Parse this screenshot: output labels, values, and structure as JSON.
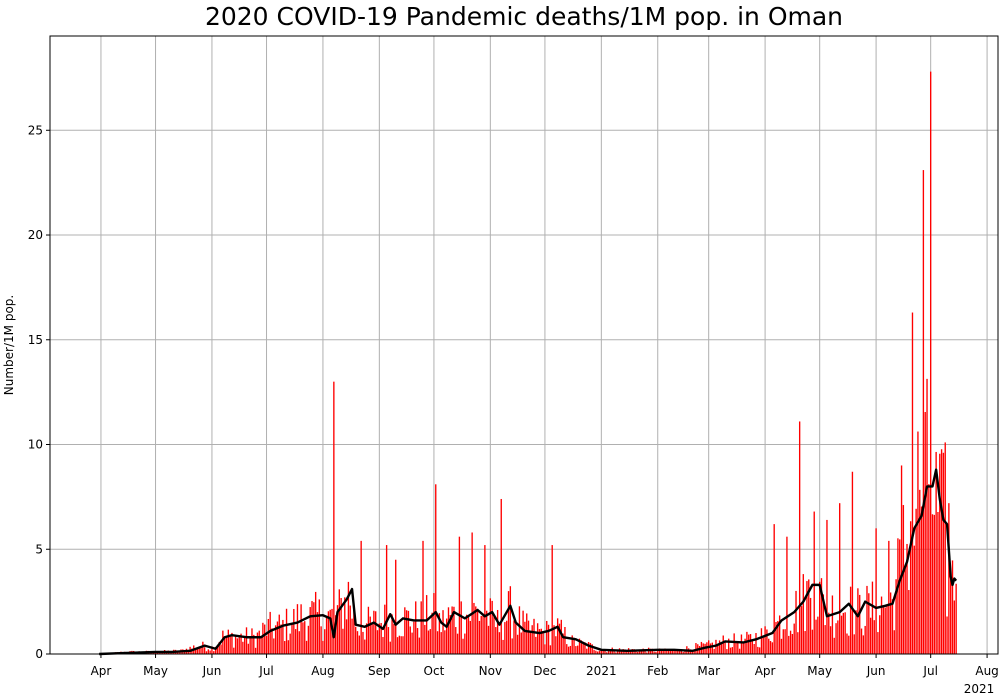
{
  "chart_data": {
    "type": "bar",
    "title": "2020 COVID-19 Pandemic deaths/1M pop. in Oman",
    "xlabel": "",
    "ylabel": "Number/1M pop.",
    "x_start": "2020-03-31",
    "x_end": "2021-07-15",
    "xlim": [
      "2020-03-04",
      "2021-08-07"
    ],
    "ylim": [
      0,
      29.5
    ],
    "yticks": [
      0,
      5,
      10,
      15,
      20,
      25
    ],
    "xticks": [
      {
        "date": "2020-04-01",
        "label": "Apr"
      },
      {
        "date": "2020-05-01",
        "label": "May"
      },
      {
        "date": "2020-06-01",
        "label": "Jun"
      },
      {
        "date": "2020-07-01",
        "label": "Jul"
      },
      {
        "date": "2020-08-01",
        "label": "Aug"
      },
      {
        "date": "2020-09-01",
        "label": "Sep"
      },
      {
        "date": "2020-10-01",
        "label": "Oct"
      },
      {
        "date": "2020-11-01",
        "label": "Nov"
      },
      {
        "date": "2020-12-01",
        "label": "Dec"
      },
      {
        "date": "2021-01-01",
        "label": "2021"
      },
      {
        "date": "2021-02-01",
        "label": "Feb"
      },
      {
        "date": "2021-03-01",
        "label": "Mar"
      },
      {
        "date": "2021-04-01",
        "label": "Apr"
      },
      {
        "date": "2021-05-01",
        "label": "May"
      },
      {
        "date": "2021-06-01",
        "label": "Jun"
      },
      {
        "date": "2021-07-01",
        "label": "Jul"
      },
      {
        "date": "2021-08-01",
        "label": "Aug"
      }
    ],
    "x_offset_label": "2021",
    "grid": true,
    "colors": {
      "bars": "#ff0000",
      "average": "#000000",
      "grid": "#b0b0b0"
    },
    "series": [
      {
        "kind": "bars",
        "unit": "deaths per 1M population, daily",
        "anchors": [
          [
            "2020-03-31",
            0.0
          ],
          [
            "2020-04-15",
            0.1
          ],
          [
            "2020-05-01",
            0.1
          ],
          [
            "2020-05-15",
            0.15
          ],
          [
            "2020-05-25",
            0.4
          ],
          [
            "2020-06-01",
            0.3
          ],
          [
            "2020-06-07",
            0.8
          ],
          [
            "2020-06-15",
            0.8
          ],
          [
            "2020-06-25",
            0.8
          ],
          [
            "2020-07-01",
            1.2
          ],
          [
            "2020-07-10",
            1.3
          ],
          [
            "2020-07-20",
            1.7
          ],
          [
            "2020-07-28",
            1.8
          ],
          [
            "2020-08-05",
            1.7
          ],
          [
            "2020-08-10",
            2.0
          ],
          [
            "2020-08-15",
            2.8
          ],
          [
            "2020-08-20",
            1.3
          ],
          [
            "2020-09-01",
            1.5
          ],
          [
            "2020-09-10",
            1.7
          ],
          [
            "2020-09-20",
            1.6
          ],
          [
            "2020-10-01",
            1.8
          ],
          [
            "2020-10-05",
            1.4
          ],
          [
            "2020-10-10",
            1.8
          ],
          [
            "2020-10-20",
            1.9
          ],
          [
            "2020-10-28",
            2.0
          ],
          [
            "2020-11-05",
            1.4
          ],
          [
            "2020-11-12",
            2.0
          ],
          [
            "2020-11-20",
            1.2
          ],
          [
            "2020-12-01",
            1.0
          ],
          [
            "2020-12-08",
            1.2
          ],
          [
            "2020-12-15",
            0.6
          ],
          [
            "2020-12-25",
            0.4
          ],
          [
            "2021-01-01",
            0.2
          ],
          [
            "2021-01-20",
            0.2
          ],
          [
            "2021-02-10",
            0.15
          ],
          [
            "2021-02-20",
            0.3
          ],
          [
            "2021-03-01",
            0.4
          ],
          [
            "2021-03-10",
            0.6
          ],
          [
            "2021-03-20",
            0.6
          ],
          [
            "2021-04-01",
            0.9
          ],
          [
            "2021-04-10",
            1.6
          ],
          [
            "2021-04-20",
            2.2
          ],
          [
            "2021-04-28",
            3.3
          ],
          [
            "2021-05-05",
            2.0
          ],
          [
            "2021-05-15",
            2.2
          ],
          [
            "2021-05-22",
            2.0
          ],
          [
            "2021-06-01",
            2.2
          ],
          [
            "2021-06-10",
            2.5
          ],
          [
            "2021-06-15",
            4.5
          ],
          [
            "2021-06-20",
            6.0
          ],
          [
            "2021-06-25",
            8.0
          ],
          [
            "2021-07-01",
            8.3
          ],
          [
            "2021-07-05",
            6.3
          ],
          [
            "2021-07-08",
            6.0
          ],
          [
            "2021-07-10",
            3.5
          ],
          [
            "2021-07-15",
            3.5
          ]
        ],
        "spikes": [
          [
            "2020-08-07",
            13.0
          ],
          [
            "2020-08-22",
            5.4
          ],
          [
            "2020-09-05",
            5.2
          ],
          [
            "2020-09-10",
            4.5
          ],
          [
            "2020-09-25",
            5.4
          ],
          [
            "2020-10-02",
            8.1
          ],
          [
            "2020-10-15",
            5.6
          ],
          [
            "2020-10-22",
            5.8
          ],
          [
            "2020-10-29",
            5.2
          ],
          [
            "2020-11-07",
            7.4
          ],
          [
            "2020-12-05",
            5.2
          ],
          [
            "2021-04-06",
            6.2
          ],
          [
            "2021-04-13",
            5.6
          ],
          [
            "2021-04-20",
            11.1
          ],
          [
            "2021-04-28",
            6.8
          ],
          [
            "2021-05-05",
            6.4
          ],
          [
            "2021-05-12",
            7.2
          ],
          [
            "2021-05-19",
            8.7
          ],
          [
            "2021-06-01",
            6.0
          ],
          [
            "2021-06-08",
            5.4
          ],
          [
            "2021-06-15",
            9.0
          ],
          [
            "2021-06-21",
            16.3
          ],
          [
            "2021-06-27",
            23.1
          ],
          [
            "2021-07-01",
            27.8
          ],
          [
            "2021-07-09",
            10.1
          ],
          [
            "2021-07-11",
            7.2
          ]
        ]
      },
      {
        "kind": "line",
        "unit": "7-day moving average",
        "points": [
          [
            "2020-03-31",
            0.0
          ],
          [
            "2020-04-15",
            0.05
          ],
          [
            "2020-05-01",
            0.1
          ],
          [
            "2020-05-10",
            0.1
          ],
          [
            "2020-05-20",
            0.15
          ],
          [
            "2020-05-28",
            0.4
          ],
          [
            "2020-06-03",
            0.25
          ],
          [
            "2020-06-08",
            0.8
          ],
          [
            "2020-06-12",
            0.9
          ],
          [
            "2020-06-20",
            0.8
          ],
          [
            "2020-06-28",
            0.8
          ],
          [
            "2020-07-03",
            1.1
          ],
          [
            "2020-07-10",
            1.35
          ],
          [
            "2020-07-18",
            1.5
          ],
          [
            "2020-07-25",
            1.8
          ],
          [
            "2020-08-01",
            1.85
          ],
          [
            "2020-08-05",
            1.7
          ],
          [
            "2020-08-07",
            0.8
          ],
          [
            "2020-08-09",
            2.0
          ],
          [
            "2020-08-14",
            2.6
          ],
          [
            "2020-08-17",
            3.1
          ],
          [
            "2020-08-19",
            1.4
          ],
          [
            "2020-08-24",
            1.3
          ],
          [
            "2020-08-29",
            1.5
          ],
          [
            "2020-09-03",
            1.2
          ],
          [
            "2020-09-07",
            1.9
          ],
          [
            "2020-09-10",
            1.4
          ],
          [
            "2020-09-14",
            1.7
          ],
          [
            "2020-09-20",
            1.6
          ],
          [
            "2020-09-27",
            1.6
          ],
          [
            "2020-10-02",
            2.0
          ],
          [
            "2020-10-05",
            1.5
          ],
          [
            "2020-10-08",
            1.3
          ],
          [
            "2020-10-12",
            2.0
          ],
          [
            "2020-10-18",
            1.7
          ],
          [
            "2020-10-25",
            2.1
          ],
          [
            "2020-10-29",
            1.8
          ],
          [
            "2020-11-02",
            2.0
          ],
          [
            "2020-11-06",
            1.4
          ],
          [
            "2020-11-12",
            2.3
          ],
          [
            "2020-11-15",
            1.5
          ],
          [
            "2020-11-20",
            1.1
          ],
          [
            "2020-11-28",
            1.0
          ],
          [
            "2020-12-03",
            1.1
          ],
          [
            "2020-12-08",
            1.3
          ],
          [
            "2020-12-11",
            0.8
          ],
          [
            "2020-12-18",
            0.7
          ],
          [
            "2020-12-25",
            0.4
          ],
          [
            "2021-01-01",
            0.2
          ],
          [
            "2021-01-15",
            0.15
          ],
          [
            "2021-02-01",
            0.2
          ],
          [
            "2021-02-10",
            0.2
          ],
          [
            "2021-02-20",
            0.15
          ],
          [
            "2021-02-27",
            0.3
          ],
          [
            "2021-03-05",
            0.4
          ],
          [
            "2021-03-10",
            0.6
          ],
          [
            "2021-03-20",
            0.55
          ],
          [
            "2021-03-27",
            0.7
          ],
          [
            "2021-04-05",
            1.0
          ],
          [
            "2021-04-10",
            1.6
          ],
          [
            "2021-04-17",
            2.0
          ],
          [
            "2021-04-22",
            2.5
          ],
          [
            "2021-04-27",
            3.3
          ],
          [
            "2021-05-01",
            3.3
          ],
          [
            "2021-05-05",
            1.8
          ],
          [
            "2021-05-12",
            2.0
          ],
          [
            "2021-05-17",
            2.4
          ],
          [
            "2021-05-22",
            1.8
          ],
          [
            "2021-05-26",
            2.5
          ],
          [
            "2021-06-01",
            2.2
          ],
          [
            "2021-06-06",
            2.3
          ],
          [
            "2021-06-10",
            2.4
          ],
          [
            "2021-06-14",
            3.5
          ],
          [
            "2021-06-18",
            4.4
          ],
          [
            "2021-06-22",
            6.0
          ],
          [
            "2021-06-26",
            6.6
          ],
          [
            "2021-06-29",
            8.0
          ],
          [
            "2021-07-02",
            8.0
          ],
          [
            "2021-07-04",
            8.8
          ],
          [
            "2021-07-06",
            7.4
          ],
          [
            "2021-07-08",
            6.4
          ],
          [
            "2021-07-10",
            6.2
          ],
          [
            "2021-07-12",
            3.7
          ],
          [
            "2021-07-13",
            3.3
          ],
          [
            "2021-07-14",
            3.6
          ],
          [
            "2021-07-15",
            3.5
          ]
        ]
      }
    ]
  }
}
